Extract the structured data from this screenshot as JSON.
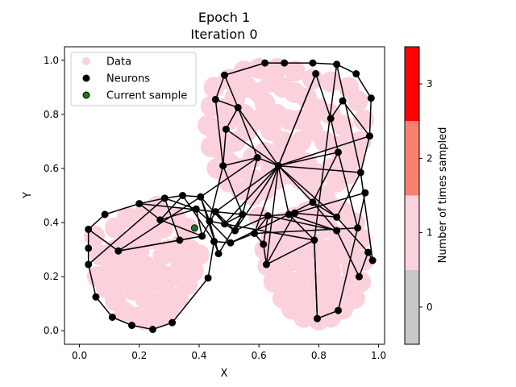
{
  "chart_data": {
    "type": "scatter",
    "title": "Epoch 1",
    "subtitle": "Iteration 0",
    "xlabel": "X",
    "ylabel": "Y",
    "xlim": [
      -0.05,
      1.02
    ],
    "ylim": [
      -0.05,
      1.05
    ],
    "x_ticks": [
      "0.0",
      "0.2",
      "0.4",
      "0.6",
      "0.8",
      "1.0"
    ],
    "y_ticks": [
      "0.0",
      "0.2",
      "0.4",
      "0.6",
      "0.8",
      "1.0"
    ],
    "grid": false,
    "legend": {
      "placement": "top-left",
      "entries": [
        "Data",
        "Neurons",
        "Current sample"
      ]
    },
    "colorbar": {
      "label": "Number of times sampled",
      "ticks": [
        "0",
        "1",
        "2",
        "3"
      ],
      "colors": [
        "#c8c8c8",
        "#fbd1dc",
        "#fa8072",
        "#ff0000"
      ],
      "range": [
        -0.5,
        3.5
      ]
    },
    "colors": {
      "data": "#fbd1dc",
      "neurons": "#000000",
      "current_sample": "#1a7a1a",
      "edges": "#000000"
    },
    "current_sample": [
      0.385,
      0.38
    ],
    "neurons": [
      [
        0.03,
        0.375
      ],
      [
        0.03,
        0.305
      ],
      [
        0.03,
        0.245
      ],
      [
        0.055,
        0.125
      ],
      [
        0.085,
        0.43
      ],
      [
        0.11,
        0.05
      ],
      [
        0.13,
        0.295
      ],
      [
        0.175,
        0.02
      ],
      [
        0.2,
        0.47
      ],
      [
        0.245,
        0.005
      ],
      [
        0.27,
        0.41
      ],
      [
        0.285,
        0.49
      ],
      [
        0.31,
        0.03
      ],
      [
        0.335,
        0.335
      ],
      [
        0.345,
        0.5
      ],
      [
        0.39,
        0.45
      ],
      [
        0.405,
        0.495
      ],
      [
        0.41,
        0.35
      ],
      [
        0.43,
        0.195
      ],
      [
        0.435,
        0.405
      ],
      [
        0.45,
        0.33
      ],
      [
        0.455,
        0.855
      ],
      [
        0.455,
        0.44
      ],
      [
        0.465,
        0.285
      ],
      [
        0.48,
        0.61
      ],
      [
        0.485,
        0.945
      ],
      [
        0.485,
        0.395
      ],
      [
        0.49,
        0.745
      ],
      [
        0.505,
        0.325
      ],
      [
        0.52,
        0.37
      ],
      [
        0.53,
        0.825
      ],
      [
        0.545,
        0.43
      ],
      [
        0.585,
        0.36
      ],
      [
        0.595,
        0.64
      ],
      [
        0.615,
        0.32
      ],
      [
        0.62,
        0.99
      ],
      [
        0.625,
        0.245
      ],
      [
        0.63,
        0.425
      ],
      [
        0.665,
        0.61
      ],
      [
        0.685,
        0.99
      ],
      [
        0.7,
        0.43
      ],
      [
        0.72,
        0.435
      ],
      [
        0.78,
        0.475
      ],
      [
        0.785,
        0.335
      ],
      [
        0.78,
        0.99
      ],
      [
        0.79,
        0.95
      ],
      [
        0.795,
        0.045
      ],
      [
        0.84,
        0.785
      ],
      [
        0.86,
        0.985
      ],
      [
        0.86,
        0.37
      ],
      [
        0.865,
        0.075
      ],
      [
        0.865,
        0.66
      ],
      [
        0.88,
        0.85
      ],
      [
        0.86,
        0.42
      ],
      [
        0.925,
        0.95
      ],
      [
        0.93,
        0.38
      ],
      [
        0.935,
        0.2
      ],
      [
        0.94,
        0.585
      ],
      [
        0.955,
        0.51
      ],
      [
        0.965,
        0.29
      ],
      [
        0.97,
        0.72
      ],
      [
        0.975,
        0.86
      ],
      [
        0.98,
        0.26
      ]
    ],
    "edges": [
      [
        4,
        8
      ],
      [
        8,
        11
      ],
      [
        11,
        14
      ],
      [
        14,
        16
      ],
      [
        4,
        0
      ],
      [
        0,
        1
      ],
      [
        1,
        2
      ],
      [
        2,
        3
      ],
      [
        3,
        5
      ],
      [
        5,
        7
      ],
      [
        7,
        9
      ],
      [
        9,
        12
      ],
      [
        12,
        18
      ],
      [
        18,
        20
      ],
      [
        20,
        23
      ],
      [
        6,
        13
      ],
      [
        13,
        17
      ],
      [
        17,
        22
      ],
      [
        8,
        10
      ],
      [
        10,
        15
      ],
      [
        15,
        19
      ],
      [
        19,
        26
      ],
      [
        26,
        29
      ],
      [
        29,
        31
      ],
      [
        31,
        37
      ],
      [
        37,
        40
      ],
      [
        40,
        42
      ],
      [
        42,
        49
      ],
      [
        49,
        56
      ],
      [
        56,
        59
      ],
      [
        59,
        62
      ],
      [
        62,
        57
      ],
      [
        57,
        48
      ],
      [
        48,
        43
      ],
      [
        43,
        46
      ],
      [
        46,
        50
      ],
      [
        50,
        55
      ],
      [
        55,
        58
      ],
      [
        58,
        41
      ],
      [
        41,
        36
      ],
      [
        36,
        34
      ],
      [
        34,
        32
      ],
      [
        32,
        28
      ],
      [
        28,
        20
      ],
      [
        8,
        22
      ],
      [
        14,
        10
      ],
      [
        11,
        15
      ],
      [
        16,
        19
      ],
      [
        16,
        26
      ],
      [
        21,
        25
      ],
      [
        25,
        35
      ],
      [
        35,
        39
      ],
      [
        39,
        44
      ],
      [
        44,
        48
      ],
      [
        48,
        54
      ],
      [
        54,
        61
      ],
      [
        61,
        60
      ],
      [
        60,
        57
      ],
      [
        57,
        53
      ],
      [
        21,
        30
      ],
      [
        30,
        33
      ],
      [
        33,
        38
      ],
      [
        38,
        45
      ],
      [
        45,
        47
      ],
      [
        47,
        52
      ],
      [
        52,
        60
      ],
      [
        21,
        24
      ],
      [
        24,
        27
      ],
      [
        27,
        38
      ],
      [
        38,
        51
      ],
      [
        51,
        55
      ],
      [
        51,
        47
      ],
      [
        45,
        38
      ],
      [
        24,
        33
      ],
      [
        33,
        16
      ],
      [
        24,
        19
      ],
      [
        27,
        30
      ],
      [
        30,
        38
      ],
      [
        38,
        32
      ],
      [
        38,
        36
      ],
      [
        38,
        22
      ],
      [
        38,
        26
      ],
      [
        38,
        29
      ],
      [
        38,
        40
      ],
      [
        38,
        42
      ],
      [
        38,
        53
      ],
      [
        38,
        57
      ],
      [
        38,
        60
      ],
      [
        24,
        31
      ],
      [
        31,
        33
      ],
      [
        42,
        51
      ],
      [
        42,
        53
      ],
      [
        53,
        59
      ],
      [
        40,
        43
      ],
      [
        43,
        46
      ],
      [
        26,
        43
      ],
      [
        29,
        37
      ],
      [
        22,
        29
      ],
      [
        22,
        31
      ],
      [
        14,
        20
      ],
      [
        15,
        17
      ],
      [
        17,
        13
      ],
      [
        13,
        6
      ],
      [
        6,
        16
      ],
      [
        0,
        6
      ],
      [
        2,
        11
      ],
      [
        11,
        13
      ],
      [
        26,
        31
      ],
      [
        10,
        17
      ],
      [
        19,
        23
      ],
      [
        19,
        28
      ],
      [
        37,
        49
      ],
      [
        41,
        53
      ],
      [
        32,
        37
      ],
      [
        36,
        43
      ],
      [
        34,
        37
      ],
      [
        28,
        40
      ],
      [
        40,
        49
      ],
      [
        32,
        55
      ],
      [
        23,
        31
      ],
      [
        16,
        23
      ],
      [
        22,
        26
      ],
      [
        30,
        25
      ]
    ],
    "data_points": [
      [
        0.05,
        0.35
      ],
      [
        0.07,
        0.28
      ],
      [
        0.06,
        0.2
      ],
      [
        0.09,
        0.16
      ],
      [
        0.12,
        0.11
      ],
      [
        0.15,
        0.07
      ],
      [
        0.19,
        0.05
      ],
      [
        0.22,
        0.04
      ],
      [
        0.27,
        0.05
      ],
      [
        0.3,
        0.08
      ],
      [
        0.33,
        0.12
      ],
      [
        0.36,
        0.17
      ],
      [
        0.38,
        0.22
      ],
      [
        0.4,
        0.28
      ],
      [
        0.12,
        0.38
      ],
      [
        0.16,
        0.42
      ],
      [
        0.22,
        0.44
      ],
      [
        0.26,
        0.46
      ],
      [
        0.1,
        0.22
      ],
      [
        0.14,
        0.18
      ],
      [
        0.18,
        0.15
      ],
      [
        0.22,
        0.12
      ],
      [
        0.26,
        0.18
      ],
      [
        0.3,
        0.2
      ],
      [
        0.34,
        0.25
      ],
      [
        0.2,
        0.3
      ],
      [
        0.24,
        0.34
      ],
      [
        0.28,
        0.28
      ],
      [
        0.16,
        0.33
      ],
      [
        0.12,
        0.3
      ],
      [
        0.1,
        0.27
      ],
      [
        0.14,
        0.24
      ],
      [
        0.18,
        0.22
      ],
      [
        0.22,
        0.24
      ],
      [
        0.26,
        0.22
      ],
      [
        0.3,
        0.3
      ],
      [
        0.34,
        0.32
      ],
      [
        0.36,
        0.38
      ],
      [
        0.32,
        0.42
      ],
      [
        0.28,
        0.38
      ],
      [
        0.24,
        0.4
      ],
      [
        0.2,
        0.37
      ],
      [
        0.17,
        0.26
      ],
      [
        0.21,
        0.17
      ],
      [
        0.25,
        0.1
      ],
      [
        0.29,
        0.14
      ],
      [
        0.33,
        0.2
      ],
      [
        0.37,
        0.3
      ],
      [
        0.45,
        0.9
      ],
      [
        0.5,
        0.93
      ],
      [
        0.55,
        0.96
      ],
      [
        0.6,
        0.97
      ],
      [
        0.66,
        0.97
      ],
      [
        0.72,
        0.96
      ],
      [
        0.78,
        0.93
      ],
      [
        0.84,
        0.92
      ],
      [
        0.9,
        0.9
      ],
      [
        0.93,
        0.85
      ],
      [
        0.95,
        0.78
      ],
      [
        0.94,
        0.7
      ],
      [
        0.92,
        0.64
      ],
      [
        0.9,
        0.58
      ],
      [
        0.86,
        0.55
      ],
      [
        0.82,
        0.5
      ],
      [
        0.78,
        0.52
      ],
      [
        0.74,
        0.56
      ],
      [
        0.7,
        0.58
      ],
      [
        0.66,
        0.56
      ],
      [
        0.62,
        0.52
      ],
      [
        0.58,
        0.5
      ],
      [
        0.54,
        0.52
      ],
      [
        0.5,
        0.55
      ],
      [
        0.46,
        0.6
      ],
      [
        0.44,
        0.68
      ],
      [
        0.43,
        0.76
      ],
      [
        0.44,
        0.83
      ],
      [
        0.48,
        0.82
      ],
      [
        0.52,
        0.86
      ],
      [
        0.56,
        0.9
      ],
      [
        0.6,
        0.88
      ],
      [
        0.64,
        0.92
      ],
      [
        0.68,
        0.9
      ],
      [
        0.72,
        0.88
      ],
      [
        0.76,
        0.86
      ],
      [
        0.8,
        0.82
      ],
      [
        0.84,
        0.8
      ],
      [
        0.88,
        0.76
      ],
      [
        0.9,
        0.7
      ],
      [
        0.88,
        0.64
      ],
      [
        0.84,
        0.6
      ],
      [
        0.8,
        0.58
      ],
      [
        0.76,
        0.62
      ],
      [
        0.72,
        0.66
      ],
      [
        0.68,
        0.7
      ],
      [
        0.64,
        0.74
      ],
      [
        0.6,
        0.78
      ],
      [
        0.56,
        0.74
      ],
      [
        0.52,
        0.7
      ],
      [
        0.48,
        0.66
      ],
      [
        0.5,
        0.62
      ],
      [
        0.54,
        0.6
      ],
      [
        0.58,
        0.64
      ],
      [
        0.62,
        0.66
      ],
      [
        0.66,
        0.64
      ],
      [
        0.7,
        0.62
      ],
      [
        0.74,
        0.7
      ],
      [
        0.78,
        0.74
      ],
      [
        0.82,
        0.7
      ],
      [
        0.86,
        0.68
      ],
      [
        0.62,
        0.84
      ],
      [
        0.66,
        0.8
      ],
      [
        0.7,
        0.78
      ],
      [
        0.74,
        0.78
      ],
      [
        0.78,
        0.8
      ],
      [
        0.55,
        0.8
      ],
      [
        0.5,
        0.78
      ],
      [
        0.46,
        0.72
      ],
      [
        0.58,
        0.56
      ],
      [
        0.64,
        0.6
      ],
      [
        0.6,
        0.42
      ],
      [
        0.64,
        0.38
      ],
      [
        0.68,
        0.4
      ],
      [
        0.72,
        0.42
      ],
      [
        0.76,
        0.44
      ],
      [
        0.8,
        0.46
      ],
      [
        0.84,
        0.46
      ],
      [
        0.88,
        0.44
      ],
      [
        0.92,
        0.4
      ],
      [
        0.94,
        0.34
      ],
      [
        0.95,
        0.26
      ],
      [
        0.94,
        0.18
      ],
      [
        0.92,
        0.12
      ],
      [
        0.88,
        0.08
      ],
      [
        0.84,
        0.05
      ],
      [
        0.8,
        0.04
      ],
      [
        0.75,
        0.05
      ],
      [
        0.71,
        0.08
      ],
      [
        0.68,
        0.12
      ],
      [
        0.65,
        0.18
      ],
      [
        0.63,
        0.24
      ],
      [
        0.62,
        0.3
      ],
      [
        0.64,
        0.34
      ],
      [
        0.66,
        0.28
      ],
      [
        0.68,
        0.22
      ],
      [
        0.7,
        0.16
      ],
      [
        0.74,
        0.12
      ],
      [
        0.78,
        0.1
      ],
      [
        0.82,
        0.1
      ],
      [
        0.86,
        0.12
      ],
      [
        0.89,
        0.17
      ],
      [
        0.91,
        0.23
      ],
      [
        0.9,
        0.3
      ],
      [
        0.87,
        0.35
      ],
      [
        0.83,
        0.38
      ],
      [
        0.79,
        0.4
      ],
      [
        0.75,
        0.38
      ],
      [
        0.71,
        0.35
      ],
      [
        0.69,
        0.3
      ],
      [
        0.72,
        0.26
      ],
      [
        0.76,
        0.22
      ],
      [
        0.8,
        0.2
      ],
      [
        0.84,
        0.22
      ],
      [
        0.86,
        0.28
      ],
      [
        0.83,
        0.3
      ],
      [
        0.79,
        0.32
      ],
      [
        0.75,
        0.3
      ],
      [
        0.77,
        0.26
      ],
      [
        0.81,
        0.26
      ],
      [
        0.73,
        0.18
      ],
      [
        0.79,
        0.15
      ],
      [
        0.85,
        0.16
      ],
      [
        0.68,
        0.36
      ],
      [
        0.9,
        0.36
      ]
    ]
  }
}
